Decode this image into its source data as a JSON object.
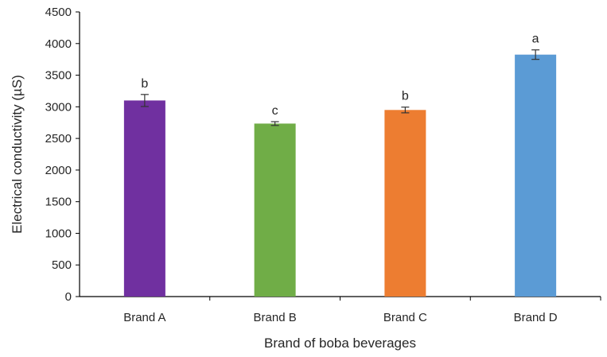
{
  "chart_data": {
    "type": "bar",
    "title": "",
    "xlabel": "Brand of boba beverages",
    "ylabel": "Electrical conductivity (µS)",
    "ylim": [
      0,
      4500
    ],
    "yticks": [
      0,
      500,
      1000,
      1500,
      2000,
      2500,
      3000,
      3500,
      4000,
      4500
    ],
    "grid": false,
    "legend": "none",
    "categories": [
      "Brand A",
      "Brand B",
      "Brand C",
      "Brand D"
    ],
    "values": [
      3100,
      2735,
      2950,
      3825
    ],
    "errors": [
      95,
      30,
      45,
      75
    ],
    "significance_labels": [
      "b",
      "c",
      "b",
      "a"
    ],
    "colors": [
      "#7030a0",
      "#70ad47",
      "#ed7d31",
      "#5b9bd5"
    ]
  }
}
